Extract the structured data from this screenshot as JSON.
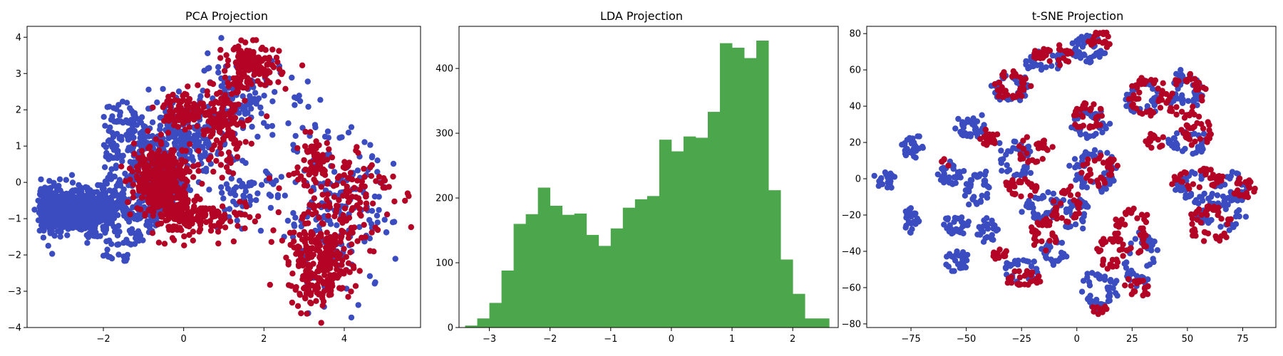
{
  "figure": {
    "background": "#ffffff"
  },
  "chart_data": [
    {
      "type": "scatter",
      "title": "PCA Projection",
      "xlabel": "",
      "ylabel": "",
      "xlim": [
        -3.9,
        5.9
      ],
      "ylim": [
        -4,
        4.3
      ],
      "xticks": [
        -2,
        0,
        2,
        4
      ],
      "yticks": [
        -4,
        -3,
        -2,
        -1,
        0,
        1,
        2,
        3,
        4
      ],
      "xtick_labels": [
        "−2",
        "0",
        "2",
        "4"
      ],
      "ytick_labels": [
        "−4",
        "−3",
        "−2",
        "−1",
        "0",
        "1",
        "2",
        "3",
        "4"
      ],
      "grid": false,
      "colors": {
        "class_a": "#3b4cc0",
        "class_b": "#b40426"
      },
      "regions": [
        {
          "series": "class_a",
          "shape": "wedge",
          "apex": [
            0.1,
            -0.1
          ],
          "upper": [
            -1,
            2.3
          ],
          "lower": [
            -1,
            -2.2
          ],
          "left_x": -3.6,
          "count": 900
        },
        {
          "series": "class_a",
          "shape": "ellipse",
          "center": [
            -2.4,
            -0.8
          ],
          "radius": [
            1.1,
            0.45
          ],
          "count": 350
        },
        {
          "series": "class_a",
          "shape": "ellipse",
          "center": [
            -0.2,
            1.2
          ],
          "radius": [
            1.1,
            1.0
          ],
          "count": 220
        },
        {
          "series": "class_a",
          "shape": "ellipse",
          "center": [
            1.2,
            2.2
          ],
          "radius": [
            1.3,
            1.2
          ],
          "count": 140
        },
        {
          "series": "class_a",
          "shape": "ellipse",
          "center": [
            3.8,
            -0.8
          ],
          "radius": [
            1.4,
            2.2
          ],
          "count": 180
        },
        {
          "series": "class_a",
          "shape": "ellipse",
          "center": [
            1.5,
            -0.3
          ],
          "radius": [
            0.8,
            0.8
          ],
          "count": 60
        },
        {
          "series": "class_b",
          "shape": "ellipse",
          "center": [
            -0.5,
            0.0
          ],
          "radius": [
            0.7,
            1.0
          ],
          "count": 400
        },
        {
          "series": "class_b",
          "shape": "ellipse",
          "center": [
            0.0,
            -1.0
          ],
          "radius": [
            0.5,
            0.6
          ],
          "count": 80
        },
        {
          "series": "class_b",
          "shape": "ellipse",
          "center": [
            1.0,
            1.6
          ],
          "radius": [
            0.6,
            1.3
          ],
          "count": 150
        },
        {
          "series": "class_b",
          "shape": "ellipse",
          "center": [
            1.7,
            3.2
          ],
          "radius": [
            0.7,
            0.6
          ],
          "count": 140
        },
        {
          "series": "class_b",
          "shape": "ellipse",
          "center": [
            0.0,
            2.0
          ],
          "radius": [
            0.5,
            0.5
          ],
          "count": 90
        },
        {
          "series": "class_b",
          "shape": "ellipse",
          "center": [
            3.4,
            -2.3
          ],
          "radius": [
            0.8,
            1.1
          ],
          "count": 260
        },
        {
          "series": "class_b",
          "shape": "ellipse",
          "center": [
            3.9,
            -0.3
          ],
          "radius": [
            1.3,
            1.6
          ],
          "count": 150
        },
        {
          "series": "class_b",
          "shape": "ellipse",
          "center": [
            3.2,
            0.6
          ],
          "radius": [
            0.5,
            0.7
          ],
          "count": 50
        },
        {
          "series": "class_b",
          "shape": "ellipse",
          "center": [
            1.0,
            -1.0
          ],
          "radius": [
            0.8,
            0.5
          ],
          "count": 60
        }
      ]
    },
    {
      "type": "bar",
      "title": "LDA Projection",
      "xlabel": "",
      "ylabel": "",
      "xlim": [
        -3.5,
        2.75
      ],
      "ylim": [
        0,
        465
      ],
      "xticks": [
        -3,
        -2,
        -1,
        0,
        1,
        2
      ],
      "yticks": [
        0,
        100,
        200,
        300,
        400
      ],
      "xtick_labels": [
        "−3",
        "−2",
        "−1",
        "0",
        "1",
        "2"
      ],
      "ytick_labels": [
        "0",
        "100",
        "200",
        "300",
        "400"
      ],
      "grid": false,
      "color": "#4ca64c",
      "bin_start": -3.4,
      "bin_width": 0.2,
      "values": [
        3,
        14,
        38,
        88,
        160,
        175,
        216,
        188,
        174,
        176,
        143,
        126,
        153,
        185,
        198,
        203,
        290,
        272,
        295,
        293,
        333,
        439,
        432,
        416,
        443,
        212,
        105,
        52,
        14,
        14
      ]
    },
    {
      "type": "scatter",
      "title": "t-SNE Projection",
      "xlabel": "",
      "ylabel": "",
      "xlim": [
        -95,
        90
      ],
      "ylim": [
        -82,
        84
      ],
      "xticks": [
        -75,
        -50,
        -25,
        0,
        25,
        50,
        75
      ],
      "yticks": [
        -80,
        -60,
        -40,
        -20,
        0,
        20,
        40,
        60,
        80
      ],
      "xtick_labels": [
        "−75",
        "−50",
        "−25",
        "0",
        "25",
        "50",
        "75"
      ],
      "ytick_labels": [
        "−80",
        "−60",
        "−40",
        "−20",
        "0",
        "20",
        "40",
        "60",
        "80"
      ],
      "grid": false,
      "colors": {
        "class_a": "#3b4cc0",
        "class_b": "#b40426"
      },
      "clusters": [
        {
          "series": "class_a",
          "center": [
            -87,
            -1
          ],
          "radius": [
            4,
            4
          ],
          "count": 25
        },
        {
          "series": "class_a",
          "center": [
            -75,
            17
          ],
          "radius": [
            3,
            6
          ],
          "count": 30
        },
        {
          "series": "class_a",
          "center": [
            -75,
            -23
          ],
          "radius": [
            3,
            6
          ],
          "count": 30
        },
        {
          "series": "class_a",
          "center": [
            -57,
            3
          ],
          "radius": [
            5,
            6
          ],
          "count": 35
        },
        {
          "series": "class_a",
          "center": [
            -55,
            -25
          ],
          "radius": [
            5,
            5
          ],
          "count": 30
        },
        {
          "series": "class_a",
          "center": [
            -55,
            -46
          ],
          "radius": [
            5,
            5
          ],
          "count": 30
        },
        {
          "series": "class_a",
          "center": [
            -48,
            28
          ],
          "radius": [
            6,
            5
          ],
          "count": 40
        },
        {
          "series": "class_a",
          "center": [
            -45,
            -5
          ],
          "radius": [
            5,
            10
          ],
          "count": 40
        },
        {
          "series": "class_a",
          "center": [
            -40,
            -28
          ],
          "radius": [
            4,
            6
          ],
          "count": 25
        },
        {
          "series": "class_a",
          "center": [
            -28,
            10
          ],
          "radius": [
            8,
            10
          ],
          "count": 45
        },
        {
          "series": "class_a",
          "center": [
            -30,
            50
          ],
          "radius": [
            8,
            8
          ],
          "count": 45
        },
        {
          "series": "class_a",
          "center": [
            -15,
            65
          ],
          "radius": [
            9,
            5
          ],
          "count": 35
        },
        {
          "series": "class_a",
          "center": [
            -25,
            -50
          ],
          "radius": [
            8,
            6
          ],
          "count": 30
        },
        {
          "series": "class_a",
          "center": [
            -10,
            -40
          ],
          "radius": [
            6,
            6
          ],
          "count": 30
        },
        {
          "series": "class_a",
          "center": [
            -15,
            -15
          ],
          "radius": [
            9,
            7
          ],
          "count": 45
        },
        {
          "series": "class_a",
          "center": [
            5,
            72
          ],
          "radius": [
            7,
            8
          ],
          "count": 45
        },
        {
          "series": "class_a",
          "center": [
            5,
            30
          ],
          "radius": [
            8,
            8
          ],
          "count": 45
        },
        {
          "series": "class_a",
          "center": [
            8,
            5
          ],
          "radius": [
            10,
            12
          ],
          "count": 55
        },
        {
          "series": "class_a",
          "center": [
            0,
            -20
          ],
          "radius": [
            5,
            8
          ],
          "count": 30
        },
        {
          "series": "class_a",
          "center": [
            10,
            -62
          ],
          "radius": [
            8,
            10
          ],
          "count": 50
        },
        {
          "series": "class_a",
          "center": [
            28,
            -45
          ],
          "radius": [
            8,
            15
          ],
          "count": 45
        },
        {
          "series": "class_a",
          "center": [
            30,
            45
          ],
          "radius": [
            8,
            10
          ],
          "count": 40
        },
        {
          "series": "class_a",
          "center": [
            50,
            50
          ],
          "radius": [
            8,
            10
          ],
          "count": 45
        },
        {
          "series": "class_a",
          "center": [
            50,
            20
          ],
          "radius": [
            10,
            6
          ],
          "count": 35
        },
        {
          "series": "class_a",
          "center": [
            65,
            -20
          ],
          "radius": [
            10,
            8
          ],
          "count": 40
        },
        {
          "series": "class_a",
          "center": [
            55,
            -5
          ],
          "radius": [
            10,
            8
          ],
          "count": 40
        },
        {
          "series": "class_a",
          "center": [
            72,
            -5
          ],
          "radius": [
            6,
            8
          ],
          "count": 30
        },
        {
          "series": "class_b",
          "center": [
            -30,
            52
          ],
          "radius": [
            8,
            8
          ],
          "count": 40
        },
        {
          "series": "class_b",
          "center": [
            -10,
            68
          ],
          "radius": [
            8,
            4
          ],
          "count": 30
        },
        {
          "series": "class_b",
          "center": [
            10,
            77
          ],
          "radius": [
            5,
            3
          ],
          "count": 20
        },
        {
          "series": "class_b",
          "center": [
            -40,
            22
          ],
          "radius": [
            4,
            3
          ],
          "count": 20
        },
        {
          "series": "class_b",
          "center": [
            -20,
            15
          ],
          "radius": [
            7,
            7
          ],
          "count": 30
        },
        {
          "series": "class_b",
          "center": [
            -25,
            -5
          ],
          "radius": [
            8,
            5
          ],
          "count": 30
        },
        {
          "series": "class_b",
          "center": [
            -15,
            -30
          ],
          "radius": [
            5,
            8
          ],
          "count": 30
        },
        {
          "series": "class_b",
          "center": [
            -25,
            -55
          ],
          "radius": [
            8,
            4
          ],
          "count": 30
        },
        {
          "series": "class_b",
          "center": [
            -35,
            -42
          ],
          "radius": [
            3,
            3
          ],
          "count": 15
        },
        {
          "series": "class_b",
          "center": [
            -5,
            -15
          ],
          "radius": [
            6,
            10
          ],
          "count": 30
        },
        {
          "series": "class_b",
          "center": [
            5,
            35
          ],
          "radius": [
            6,
            8
          ],
          "count": 35
        },
        {
          "series": "class_b",
          "center": [
            10,
            5
          ],
          "radius": [
            8,
            8
          ],
          "count": 35
        },
        {
          "series": "class_b",
          "center": [
            15,
            -40
          ],
          "radius": [
            6,
            10
          ],
          "count": 30
        },
        {
          "series": "class_b",
          "center": [
            25,
            -30
          ],
          "radius": [
            8,
            15
          ],
          "count": 40
        },
        {
          "series": "class_b",
          "center": [
            28,
            -60
          ],
          "radius": [
            5,
            4
          ],
          "count": 20
        },
        {
          "series": "class_b",
          "center": [
            10,
            -72
          ],
          "radius": [
            3,
            2
          ],
          "count": 10
        },
        {
          "series": "class_b",
          "center": [
            32,
            45
          ],
          "radius": [
            8,
            12
          ],
          "count": 40
        },
        {
          "series": "class_b",
          "center": [
            50,
            45
          ],
          "radius": [
            10,
            12
          ],
          "count": 40
        },
        {
          "series": "class_b",
          "center": [
            35,
            20
          ],
          "radius": [
            4,
            3
          ],
          "count": 15
        },
        {
          "series": "class_b",
          "center": [
            55,
            25
          ],
          "radius": [
            8,
            6
          ],
          "count": 30
        },
        {
          "series": "class_b",
          "center": [
            55,
            0
          ],
          "radius": [
            12,
            5
          ],
          "count": 40
        },
        {
          "series": "class_b",
          "center": [
            60,
            -25
          ],
          "radius": [
            10,
            10
          ],
          "count": 40
        },
        {
          "series": "class_b",
          "center": [
            75,
            -5
          ],
          "radius": [
            5,
            5
          ],
          "count": 25
        },
        {
          "series": "class_b",
          "center": [
            -60,
            10
          ],
          "radius": [
            2,
            2
          ],
          "count": 5
        }
      ]
    }
  ]
}
